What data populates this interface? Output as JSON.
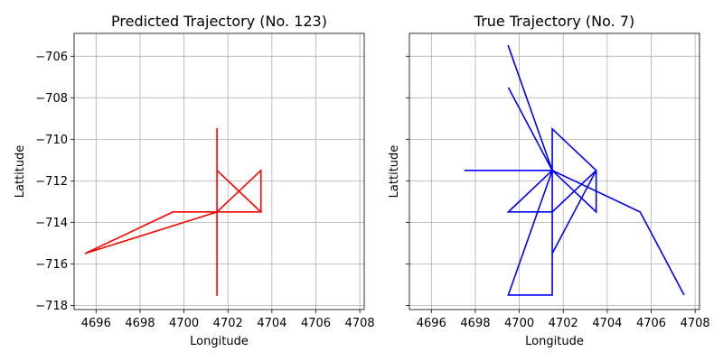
{
  "chart_data": [
    {
      "type": "line",
      "title": "Predicted Trajectory (No. 123)",
      "xlabel": "Longitude",
      "ylabel": "Lattitude",
      "xlim": [
        4695,
        4708.2
      ],
      "ylim": [
        -718.2,
        -704.9
      ],
      "xticks": [
        4696,
        4698,
        4700,
        4702,
        4704,
        4706,
        4708
      ],
      "yticks": [
        -706,
        -708,
        -710,
        -712,
        -714,
        -716,
        -718
      ],
      "show_y_ticklabels": true,
      "grid": true,
      "series": [
        {
          "color": "#ff0000",
          "points": [
            [
              4701.5,
              -709.5
            ],
            [
              4701.5,
              -717.5
            ],
            [
              4701.5,
              -709.5
            ],
            [
              4701.5,
              -717.5
            ],
            [
              4701.5,
              -713.5
            ],
            [
              4695.5,
              -715.5
            ],
            [
              4699.5,
              -713.5
            ],
            [
              4701.5,
              -713.5
            ],
            [
              4703.5,
              -713.5
            ],
            [
              4703.5,
              -711.5
            ],
            [
              4701.5,
              -713.5
            ],
            [
              4701.5,
              -711.5
            ],
            [
              4703.5,
              -713.5
            ],
            [
              4701.5,
              -713.5
            ],
            [
              4701.5,
              -717.5
            ]
          ]
        }
      ]
    },
    {
      "type": "line",
      "title": "True Trajectory (No. 7)",
      "xlabel": "Longitude",
      "ylabel": "Lattitude",
      "xlim": [
        4695,
        4708.2
      ],
      "ylim": [
        -718.2,
        -704.9
      ],
      "xticks": [
        4696,
        4698,
        4700,
        4702,
        4704,
        4706,
        4708
      ],
      "yticks": [
        -706,
        -708,
        -710,
        -712,
        -714,
        -716,
        -718
      ],
      "show_y_ticklabels": false,
      "grid": true,
      "series": [
        {
          "color": "#0000ff",
          "points": [
            [
              4699.5,
              -705.5
            ],
            [
              4701.5,
              -711.5
            ],
            [
              4697.5,
              -711.5
            ],
            [
              4701.5,
              -711.5
            ],
            [
              4699.5,
              -707.5
            ],
            [
              4701.5,
              -711.5
            ],
            [
              4699.5,
              -705.5
            ],
            [
              4701.5,
              -711.5
            ],
            [
              4697.5,
              -711.5
            ],
            [
              4701.5,
              -711.5
            ],
            [
              4699.5,
              -713.5
            ],
            [
              4701.5,
              -713.5
            ],
            [
              4701.5,
              -709.5
            ],
            [
              4703.5,
              -711.5
            ],
            [
              4703.5,
              -713.5
            ],
            [
              4701.5,
              -711.5
            ],
            [
              4705.5,
              -713.5
            ],
            [
              4707.5,
              -717.5
            ],
            [
              4705.5,
              -713.5
            ],
            [
              4701.5,
              -711.5
            ],
            [
              4701.5,
              -715.5
            ],
            [
              4703.5,
              -711.5
            ],
            [
              4701.5,
              -715.5
            ],
            [
              4701.5,
              -717.5
            ],
            [
              4699.5,
              -717.5
            ],
            [
              4701.5,
              -711.5
            ],
            [
              4701.5,
              -713.5
            ],
            [
              4703.5,
              -711.5
            ]
          ]
        }
      ]
    }
  ]
}
